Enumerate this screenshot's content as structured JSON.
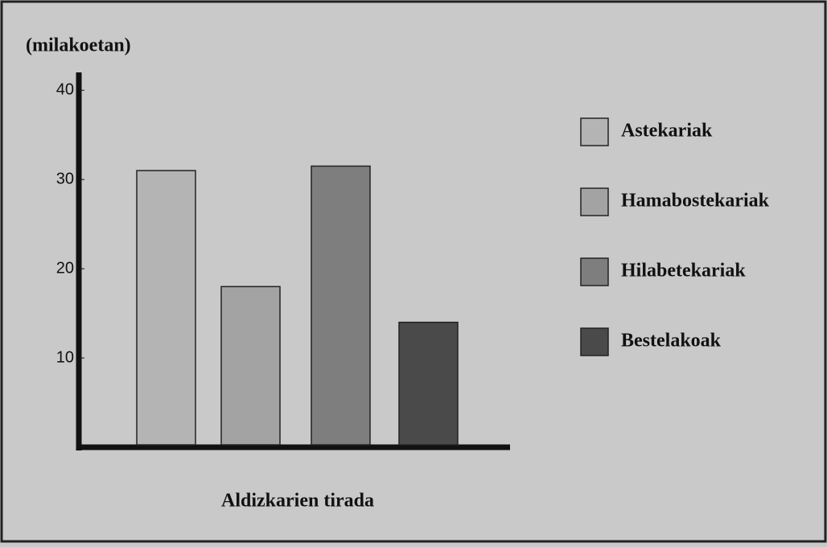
{
  "chart_data": {
    "type": "bar",
    "y_label": "(milakoetan)",
    "x_label": "Aldizkarien tirada",
    "categories": [
      "Astekariak",
      "Hamabostekariak",
      "Hilabetekariak",
      "Bestelakoak"
    ],
    "values": [
      31,
      18,
      31.5,
      14
    ],
    "colors": [
      "#b4b4b4",
      "#a3a3a3",
      "#7e7e7e",
      "#4a4a4a"
    ],
    "ylim": [
      0,
      42
    ],
    "yticks": [
      10,
      20,
      30,
      40
    ],
    "grid": false
  }
}
